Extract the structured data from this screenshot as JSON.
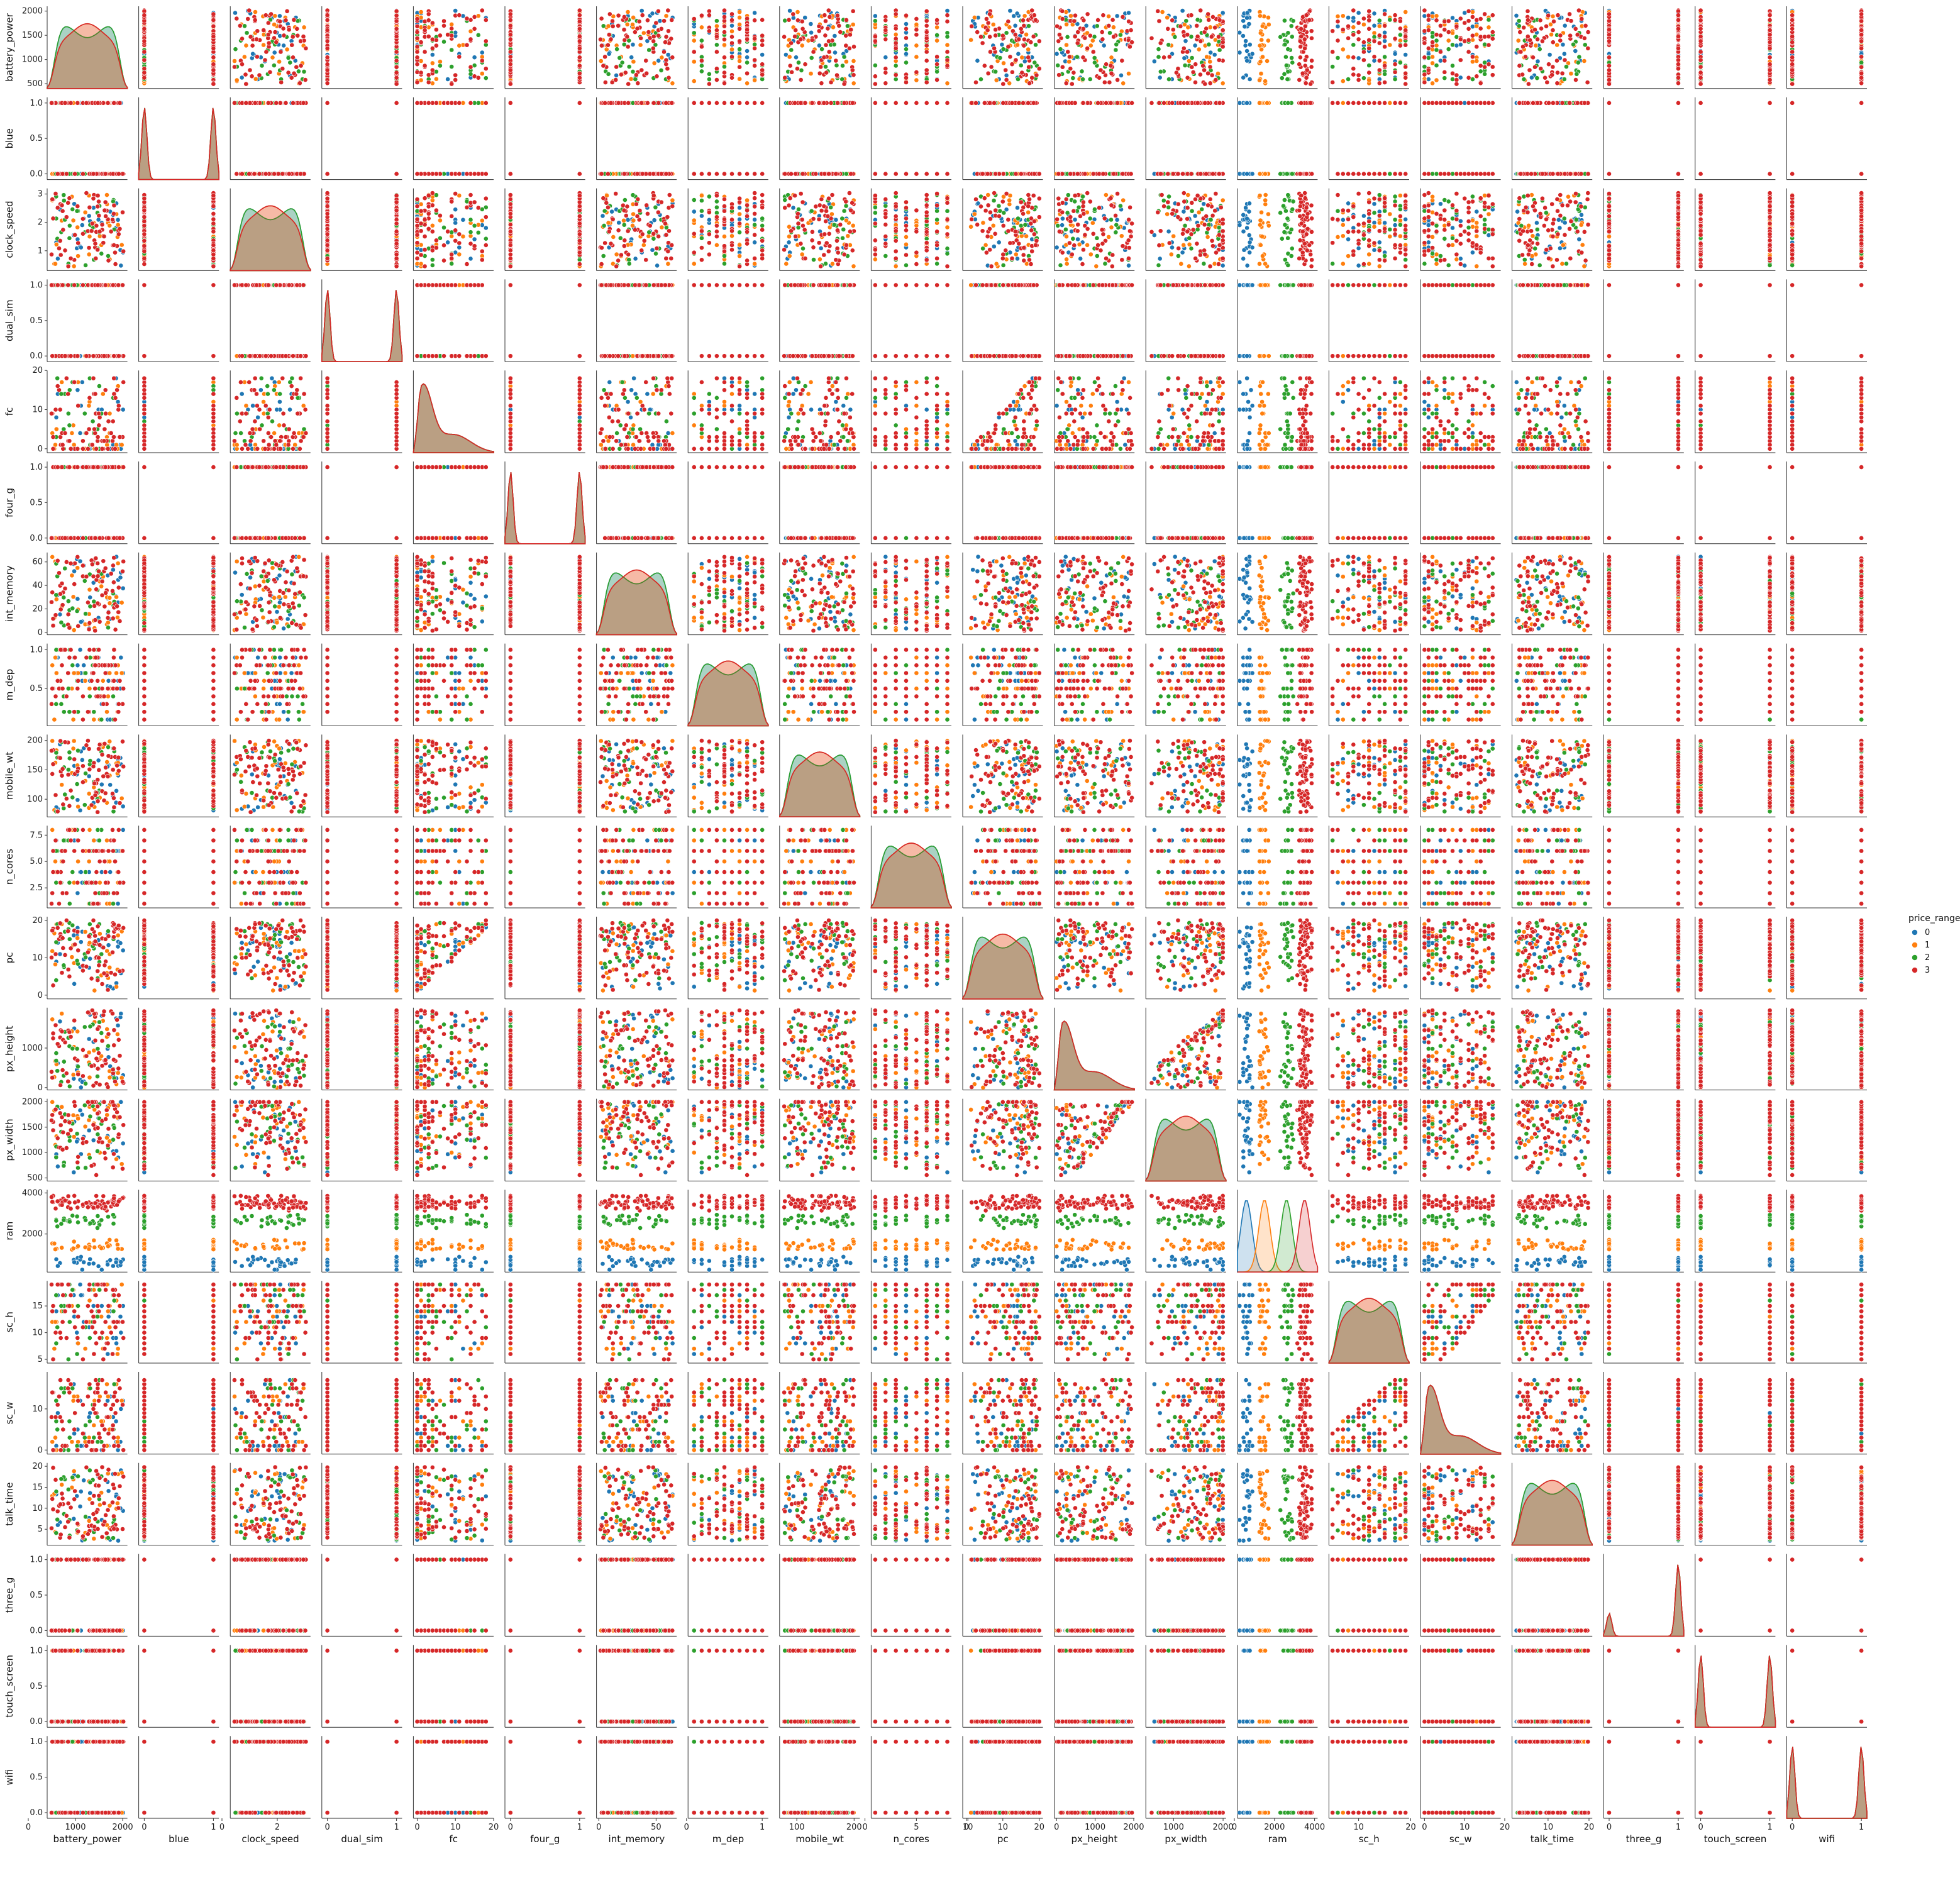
{
  "chart_data": {
    "type": "pairplot",
    "subplot_kinds": {
      "diagonal": "kde",
      "off_diagonal": "scatter"
    },
    "hue": "price_range",
    "legend": {
      "title": "price_range",
      "placement": "right",
      "entries": [
        "0",
        "1",
        "2",
        "3"
      ]
    },
    "colors": {
      "0": "#1f77b4",
      "1": "#ff7f0e",
      "2": "#2ca02c",
      "3": "#d62728"
    },
    "variables": [
      {
        "name": "battery_power",
        "range": [
          400,
          2100
        ],
        "ticks": [
          500,
          1000,
          1500,
          2000
        ],
        "xticks": [
          0,
          1000,
          2000
        ],
        "kind": "continuous"
      },
      {
        "name": "blue",
        "range": [
          -0.08,
          1.08
        ],
        "ticks": [
          "0.0",
          "0.5",
          "1.0"
        ],
        "xticks": [
          0,
          1
        ],
        "kind": "binary"
      },
      {
        "name": "clock_speed",
        "range": [
          0.3,
          3.2
        ],
        "ticks": [
          1,
          2,
          3
        ],
        "xticks": [
          0,
          2
        ],
        "kind": "continuous"
      },
      {
        "name": "dual_sim",
        "range": [
          -0.08,
          1.08
        ],
        "ticks": [
          "0.0",
          "0.5",
          "1.0"
        ],
        "xticks": [
          0,
          1
        ],
        "kind": "binary"
      },
      {
        "name": "fc",
        "range": [
          -1,
          20
        ],
        "ticks": [
          0,
          10,
          20
        ],
        "xticks": [
          0,
          10,
          20
        ],
        "kind": "continuous"
      },
      {
        "name": "four_g",
        "range": [
          -0.08,
          1.08
        ],
        "ticks": [
          "0.0",
          "0.5",
          "1.0"
        ],
        "xticks": [
          0,
          1
        ],
        "kind": "binary"
      },
      {
        "name": "int_memory",
        "range": [
          -2,
          68
        ],
        "ticks": [
          0,
          20,
          40,
          60
        ],
        "xticks": [
          0,
          50
        ],
        "kind": "continuous"
      },
      {
        "name": "m_dep",
        "range": [
          0.02,
          1.08
        ],
        "ticks": [
          "0.5",
          "1.0"
        ],
        "xticks": [
          0,
          1
        ],
        "kind": "discrete"
      },
      {
        "name": "mobile_wt",
        "range": [
          70,
          210
        ],
        "ticks": [
          100,
          150,
          200
        ],
        "xticks": [
          100,
          200
        ],
        "kind": "continuous"
      },
      {
        "name": "n_cores",
        "range": [
          0.6,
          8.4
        ],
        "ticks": [
          "2.5",
          "5.0",
          "7.5"
        ],
        "xticks": [
          0,
          5,
          10
        ],
        "kind": "discrete"
      },
      {
        "name": "pc",
        "range": [
          -1,
          21
        ],
        "ticks": [
          0,
          10,
          20
        ],
        "xticks": [
          0,
          10,
          20
        ],
        "kind": "continuous"
      },
      {
        "name": "px_height",
        "range": [
          -60,
          2020
        ],
        "ticks": [
          0,
          1000
        ],
        "xticks": [
          0,
          1000,
          2000
        ],
        "kind": "continuous"
      },
      {
        "name": "px_width",
        "range": [
          440,
          2060
        ],
        "ticks": [
          500,
          1000,
          1500,
          2000
        ],
        "xticks": [
          1000,
          2000
        ],
        "kind": "continuous"
      },
      {
        "name": "ram",
        "range": [
          150,
          4150
        ],
        "ticks": [
          0,
          2000,
          4000
        ],
        "xticks": [
          0,
          2000,
          4000
        ],
        "kind": "continuous"
      },
      {
        "name": "sc_h",
        "range": [
          4.3,
          19.7
        ],
        "ticks": [
          5,
          10,
          15,
          20
        ],
        "xticks": [
          10,
          20
        ],
        "kind": "discrete"
      },
      {
        "name": "sc_w",
        "range": [
          -1,
          19
        ],
        "ticks": [
          0,
          10
        ],
        "xticks": [
          0,
          10,
          20
        ],
        "kind": "discrete"
      },
      {
        "name": "talk_time",
        "range": [
          1.2,
          20.8
        ],
        "ticks": [
          5,
          10,
          15,
          20
        ],
        "xticks": [
          10,
          20
        ],
        "kind": "continuous"
      },
      {
        "name": "three_g",
        "range": [
          -0.08,
          1.08
        ],
        "ticks": [
          "0.0",
          "0.5",
          "1.0"
        ],
        "xticks": [
          0,
          1
        ],
        "kind": "binary"
      },
      {
        "name": "touch_screen",
        "range": [
          -0.08,
          1.08
        ],
        "ticks": [
          "0.0",
          "0.5",
          "1.0"
        ],
        "xticks": [
          0,
          1
        ],
        "kind": "binary"
      },
      {
        "name": "wifi",
        "range": [
          -0.08,
          1.08
        ],
        "ticks": [
          "0.0",
          "0.5",
          "1.0"
        ],
        "xticks": [
          0,
          1
        ],
        "kind": "binary"
      }
    ],
    "diagonal_kde": {
      "ram": {
        "modes_by_class": {
          "0": 600,
          "1": 1500,
          "2": 2600,
          "3": 3500
        }
      },
      "three_g": {
        "peaks": {
          "0.0": 0.24,
          "1.0": 0.76
        }
      },
      "binary_peaks": {
        "0.0": 0.5,
        "1.0": 0.5
      }
    },
    "notable_relationships": [
      {
        "x": "pc",
        "y": "fc",
        "pattern": "fc <= pc (triangular)"
      },
      {
        "x": "px_width",
        "y": "px_height",
        "pattern": "px_height <= px_width (triangular)"
      },
      {
        "x": "sc_h",
        "y": "sc_w",
        "pattern": "sc_w <= sc_h (triangular)"
      },
      {
        "x": "battery_power/px_height/px_width",
        "y": "ram",
        "pattern": "ram bands stratified by price_range"
      }
    ]
  }
}
